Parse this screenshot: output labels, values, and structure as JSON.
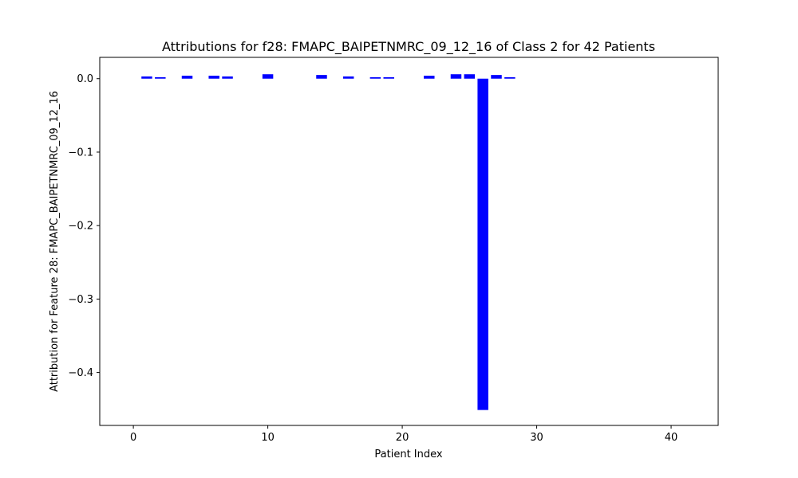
{
  "chart_data": {
    "type": "bar",
    "title": "Attributions for f28: FMAPC_BAIPETNMRC_09_12_16 of Class 2 for 42 Patients",
    "xlabel": "Patient Index",
    "ylabel": "Attribution for Feature 28: FMAPC_BAIPETNMRC_09_12_16",
    "xlim": [
      -2.5,
      43.5
    ],
    "ylim": [
      -0.472,
      0.029
    ],
    "xticks": [
      0,
      10,
      20,
      30,
      40
    ],
    "yticks": [
      0.0,
      -0.1,
      -0.2,
      -0.3,
      -0.4
    ],
    "ytick_labels": [
      "0.0",
      "−0.1",
      "−0.2",
      "−0.3",
      "−0.4"
    ],
    "bar_color": "#0000ff",
    "grid": false,
    "x": [
      0,
      1,
      2,
      3,
      4,
      5,
      6,
      7,
      8,
      9,
      10,
      11,
      12,
      13,
      14,
      15,
      16,
      17,
      18,
      19,
      20,
      21,
      22,
      23,
      24,
      25,
      26,
      27,
      28,
      29,
      30,
      31,
      32,
      33,
      34,
      35,
      36,
      37,
      38,
      39,
      40,
      41
    ],
    "values": [
      0,
      0.003,
      0.002,
      0,
      0.004,
      0,
      0.004,
      0.003,
      0,
      0,
      0.006,
      0,
      0,
      0,
      0.005,
      0,
      0.003,
      0,
      0.002,
      0.002,
      0,
      0,
      0.004,
      0,
      0.006,
      0.006,
      -0.451,
      0.005,
      0.002,
      0,
      0,
      0,
      0,
      0,
      0,
      0,
      0,
      0,
      0,
      0,
      0,
      0
    ]
  }
}
